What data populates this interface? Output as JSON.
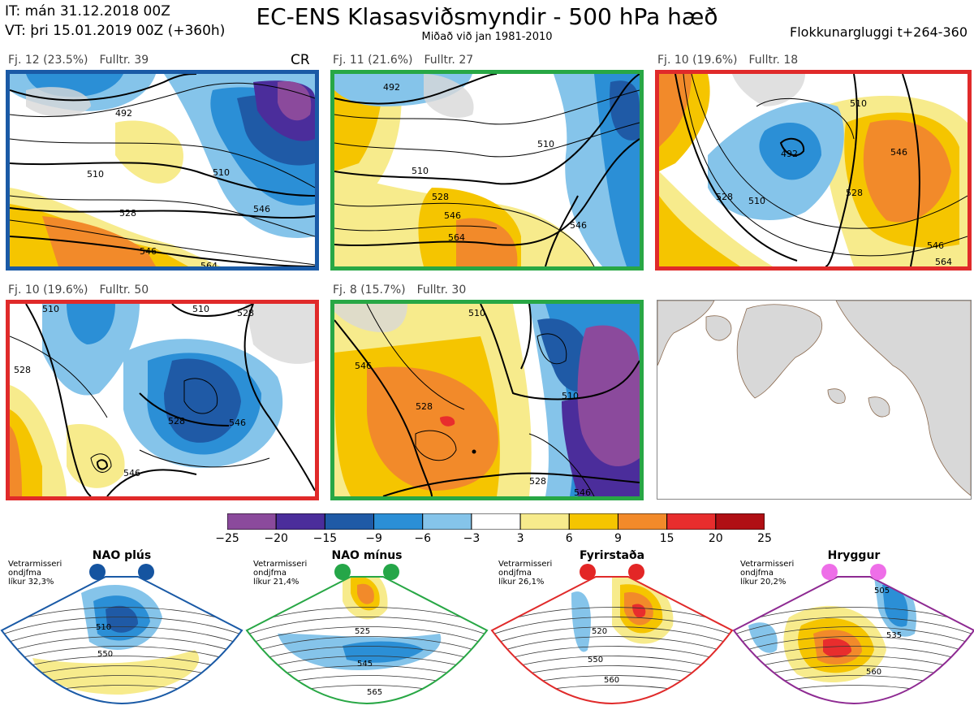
{
  "header": {
    "it_line": "IT: mán 31.12.2018 00Z",
    "vt_line": "VT: þri 15.01.2019 00Z  (+360h)",
    "title": "EC-ENS Klasasviðsmyndir - 500 hPa hæð",
    "subtitle": "Miðað við jan 1981-2010",
    "window": "Flokkunargluggi t+264-360"
  },
  "panels": [
    {
      "fj": "Fj. 12 (23.5%)",
      "fulltr": "Fulltr. 39",
      "tag": "CR",
      "border_color": "#1a5aa6",
      "contours": [
        "492",
        "510",
        "510",
        "528",
        "546",
        "546",
        "564"
      ]
    },
    {
      "fj": "Fj. 11 (21.6%)",
      "fulltr": "Fulltr. 27",
      "tag": "",
      "border_color": "#28a745",
      "contours": [
        "492",
        "510",
        "510",
        "528",
        "546",
        "564",
        "546"
      ]
    },
    {
      "fj": "Fj. 10 (19.6%)",
      "fulltr": "Fulltr. 18",
      "tag": "",
      "border_color": "#e02a2a",
      "contours": [
        "492",
        "510",
        "528",
        "546",
        "528",
        "510",
        "546",
        "564"
      ]
    },
    {
      "fj": "Fj. 10 (19.6%)",
      "fulltr": "Fulltr. 50",
      "tag": "",
      "border_color": "#e02a2a",
      "contours": [
        "510",
        "528",
        "510",
        "528",
        "546",
        "528",
        "546"
      ]
    },
    {
      "fj": "Fj. 8 (15.7%)",
      "fulltr": "Fulltr. 30",
      "tag": "",
      "border_color": "#28a745",
      "contours": [
        "510",
        "546",
        "528",
        "510",
        "528",
        "546"
      ]
    }
  ],
  "legend": {
    "ticks": [
      "−25",
      "−20",
      "−15",
      "−9",
      "−6",
      "−3",
      "3",
      "6",
      "9",
      "15",
      "20",
      "25"
    ],
    "colors": [
      "#8b4a9c",
      "#4b2d9b",
      "#1f5aa6",
      "#2b8fd6",
      "#85c4ea",
      "#ffffff",
      "#f7eb8c",
      "#f5c500",
      "#f28a2a",
      "#e82d2d",
      "#b00f14"
    ]
  },
  "regimes": [
    {
      "name": "NAO plús",
      "note": "Vetrarmisseri\nondjfma\nlíkur 32,3%",
      "color": "#1a5aa6",
      "dot_color": "#1554a0",
      "labels": [
        "510",
        "550"
      ]
    },
    {
      "name": "NAO mínus",
      "note": "Vetrarmisseri\nondjfma\nlíkur 21,4%",
      "color": "#28a745",
      "dot_color": "#25a648",
      "labels": [
        "525",
        "545",
        "565"
      ]
    },
    {
      "name": "Fyrirstaða",
      "note": "Vetrarmisseri\nondjfma\nlíkur 26,1%",
      "color": "#e02a2a",
      "dot_color": "#e32626",
      "labels": [
        "520",
        "550",
        "560"
      ]
    },
    {
      "name": "Hryggur",
      "note": "Vetrarmisseri\nondjfma\nlíkur 20,2%",
      "color": "#8e2a92",
      "dot_color": "#ee6ee8",
      "labels": [
        "505",
        "535",
        "560"
      ]
    }
  ]
}
